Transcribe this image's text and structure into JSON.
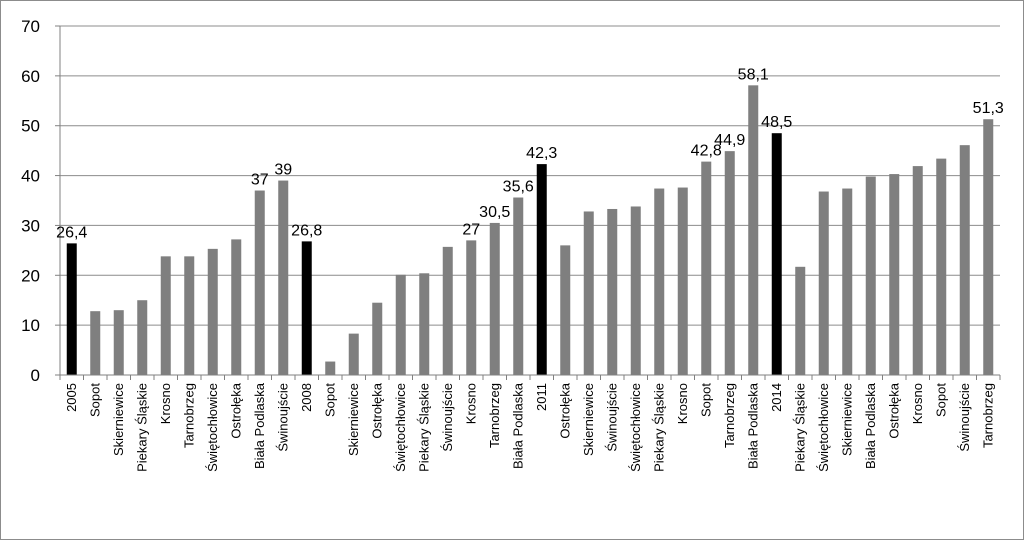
{
  "chart_data": {
    "type": "bar",
    "title": "",
    "xlabel": "",
    "ylabel": "",
    "ylim": [
      0,
      70
    ],
    "yticks": [
      "0",
      "10",
      "20",
      "30",
      "40",
      "50",
      "60",
      "70"
    ],
    "grid": true,
    "legend": "none",
    "colors": {
      "highlight": "#000000",
      "regular": "#7f7f7f",
      "grid": "#8c8c8c",
      "axis": "#808080"
    },
    "categories": [
      "2005",
      "Sopot",
      "Skierniewice",
      "Piekary Śląskie",
      "Krosno",
      "Tarnobrzeg",
      "Świętochłowice",
      "Ostrołęka",
      "Biała Podlaska",
      "Świnoujście",
      "2008",
      "Sopot",
      "Skierniewice",
      "Ostrołęka",
      "Świętochłowice",
      "Piekary Śląskie",
      "Świnoujście",
      "Krosno",
      "Tarnobrzeg",
      "Biała Podlaska",
      "2011",
      "Ostrołęka",
      "Skierniewice",
      "Świnoujście",
      "Świętochłowice",
      "Piekary Śląskie",
      "Krosno",
      "Sopot",
      "Tarnobrzeg",
      "Biała Podlaska",
      "2014",
      "Piekary Śląskie",
      "Świętochłowice",
      "Skierniewice",
      "Biała Podlaska",
      "Ostrołęka",
      "Krosno",
      "Sopot",
      "Świnoujście",
      "Tarnobrzeg"
    ],
    "values": [
      26.4,
      12.8,
      13.0,
      15.0,
      23.8,
      23.8,
      25.3,
      27.2,
      37.0,
      39.0,
      26.8,
      2.7,
      8.3,
      14.5,
      20.1,
      20.4,
      25.7,
      27.0,
      30.5,
      35.6,
      42.3,
      26.0,
      32.8,
      33.3,
      33.8,
      37.4,
      37.6,
      42.8,
      44.9,
      58.1,
      48.5,
      21.7,
      36.8,
      37.4,
      39.8,
      40.3,
      41.9,
      43.4,
      46.1,
      51.3
    ],
    "highlight": [
      true,
      false,
      false,
      false,
      false,
      false,
      false,
      false,
      false,
      false,
      true,
      false,
      false,
      false,
      false,
      false,
      false,
      false,
      false,
      false,
      true,
      false,
      false,
      false,
      false,
      false,
      false,
      false,
      false,
      false,
      true,
      false,
      false,
      false,
      false,
      false,
      false,
      false,
      false,
      false
    ],
    "data_labels": [
      "26,4",
      "",
      "",
      "",
      "",
      "",
      "",
      "",
      "37",
      "39",
      "26,8",
      "",
      "",
      "",
      "",
      "",
      "",
      "27",
      "30,5",
      "35,6",
      "42,3",
      "",
      "",
      "",
      "",
      "",
      "",
      "42,8",
      "44,9",
      "58,1",
      "48,5",
      "",
      "",
      "",
      "",
      "",
      "",
      "",
      "",
      "51,3"
    ]
  }
}
